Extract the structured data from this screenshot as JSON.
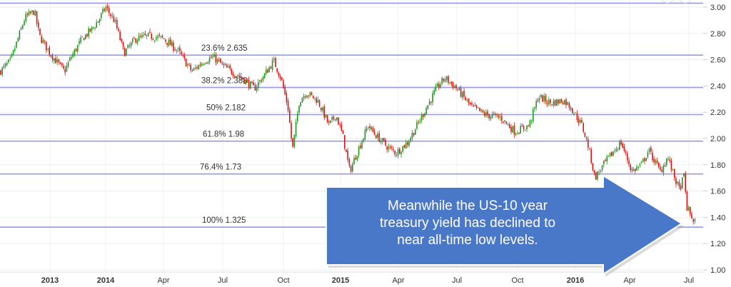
{
  "chart_data": {
    "type": "candlestick",
    "title": "",
    "xlabel": "",
    "ylabel": "",
    "ylim": [
      1.0,
      3.0
    ],
    "yticks": [
      "1.00",
      "1.20",
      "1.40",
      "1.60",
      "1.80",
      "2.00",
      "2.20",
      "2.40",
      "2.60",
      "2.80",
      "3.00"
    ],
    "xticks": [
      {
        "label": "2013",
        "year": true
      },
      {
        "label": "2014",
        "year": true
      },
      {
        "label": "Apr"
      },
      {
        "label": "Jul"
      },
      {
        "label": "Oct"
      },
      {
        "label": "2015",
        "year": true
      },
      {
        "label": "Apr"
      },
      {
        "label": "Jul"
      },
      {
        "label": "Oct"
      },
      {
        "label": "2016",
        "year": true
      },
      {
        "label": "Apr"
      },
      {
        "label": "Jul"
      }
    ],
    "up_color": "#1a9a1a",
    "down_color": "#dd1111",
    "fib_color": "#9a9ae0",
    "fib_levels": [
      {
        "value": 3.03,
        "label": ""
      },
      {
        "value": 2.635,
        "label": "23.6% 2.635"
      },
      {
        "value": 2.388,
        "label": "38.2% 2.388"
      },
      {
        "value": 2.182,
        "label": "50% 2.182"
      },
      {
        "value": 1.98,
        "label": "61.8% 1.98"
      },
      {
        "value": 1.73,
        "label": "76.4% 1.73"
      },
      {
        "value": 1.325,
        "label": "100% 1.325"
      }
    ],
    "series": [
      {
        "name": "US 10-year treasury yield",
        "x": [
          2012.1,
          2012.29,
          2012.55,
          2012.72,
          2012.81,
          2013.0,
          2013.26,
          2013.38,
          2013.58,
          2013.77,
          2013.9,
          2014.0,
          2014.04,
          2014.08,
          2014.13,
          2014.19,
          2014.25,
          2014.31,
          2014.37,
          2014.42,
          2014.46,
          2014.51,
          2014.58,
          2014.63,
          2014.67,
          2014.71,
          2014.74,
          2014.77,
          2014.79,
          2014.82,
          2014.85,
          2014.9,
          2014.95,
          2014.98,
          2015.01,
          2015.04,
          2015.07,
          2015.12,
          2015.14,
          2015.2,
          2015.24,
          2015.29,
          2015.33,
          2015.38,
          2015.42,
          2015.45,
          2015.5,
          2015.56,
          2015.62,
          2015.68,
          2015.74,
          2015.8,
          2015.84,
          2015.89,
          2015.95,
          2015.98,
          2016.03,
          2016.06,
          2016.09,
          2016.13,
          2016.18,
          2016.21,
          2016.26,
          2016.3,
          2016.33,
          2016.38,
          2016.41,
          2016.44,
          2016.46,
          2016.48,
          2016.49,
          2016.52,
          2016.53
        ],
        "y": [
          2.51,
          2.59,
          2.92,
          2.97,
          2.78,
          2.65,
          2.51,
          2.62,
          2.76,
          2.84,
          2.92,
          3.0,
          2.89,
          2.65,
          2.76,
          2.78,
          2.76,
          2.67,
          2.51,
          2.59,
          2.62,
          2.54,
          2.46,
          2.38,
          2.48,
          2.59,
          2.46,
          2.24,
          1.91,
          2.29,
          2.35,
          2.29,
          2.1,
          2.18,
          2.02,
          1.75,
          1.89,
          2.1,
          2.05,
          1.94,
          1.89,
          1.97,
          2.1,
          2.27,
          2.4,
          2.46,
          2.38,
          2.24,
          2.18,
          2.16,
          2.05,
          2.1,
          2.32,
          2.27,
          2.29,
          2.24,
          2.1,
          1.94,
          1.7,
          1.8,
          1.91,
          1.97,
          1.75,
          1.8,
          1.91,
          1.75,
          1.86,
          1.7,
          1.61,
          1.72,
          1.48,
          1.37,
          1.38
        ]
      }
    ]
  },
  "annotation": {
    "lines": [
      "Meanwhile the US-10 year",
      "treasury yield has declined to",
      "near all-time low levels."
    ],
    "color": "#4a78c8"
  }
}
